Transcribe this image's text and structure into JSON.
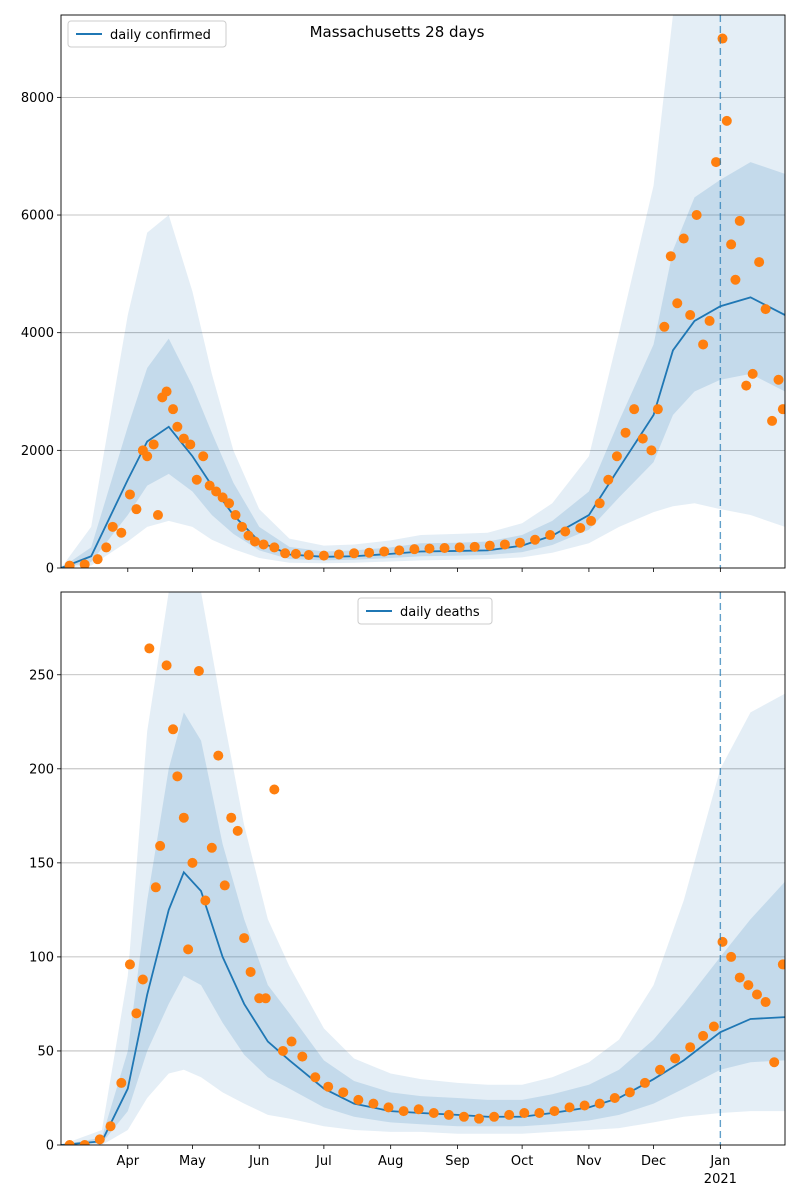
{
  "figure": {
    "title": "Massachusetts 28 days"
  },
  "chart_data": [
    {
      "id": "cases",
      "type": "line",
      "legend_label": "daily confirmed",
      "legend_position": "upper-left",
      "x_range": [
        "2020-03-01",
        "2021-01-31"
      ],
      "ylim": [
        0,
        9400
      ],
      "yticks": [
        0,
        2000,
        4000,
        6000,
        8000
      ],
      "grid": "horizontal",
      "vline_date": "2021-01-01",
      "colors": {
        "line": "#1f77b4",
        "points": "#ff7f0e",
        "band": "#1f77b4",
        "vline": "#1f77b4"
      },
      "series": [
        {
          "role": "model-mean",
          "x": [
            "2020-03-01",
            "2020-03-15",
            "2020-04-01",
            "2020-04-10",
            "2020-04-20",
            "2020-05-01",
            "2020-05-10",
            "2020-05-20",
            "2020-06-01",
            "2020-06-15",
            "2020-07-01",
            "2020-07-15",
            "2020-08-01",
            "2020-08-15",
            "2020-09-01",
            "2020-09-15",
            "2020-10-01",
            "2020-10-15",
            "2020-11-01",
            "2020-11-15",
            "2020-12-01",
            "2020-12-10",
            "2020-12-20",
            "2021-01-01",
            "2021-01-15",
            "2021-01-31"
          ],
          "y": [
            0,
            200,
            1500,
            2150,
            2400,
            1900,
            1400,
            900,
            450,
            230,
            190,
            200,
            240,
            280,
            290,
            300,
            380,
            550,
            900,
            1700,
            2600,
            3700,
            4200,
            4450,
            4600,
            4300
          ]
        },
        {
          "role": "band-inner",
          "x": [
            "2020-03-01",
            "2020-03-15",
            "2020-04-01",
            "2020-04-10",
            "2020-04-20",
            "2020-05-01",
            "2020-05-10",
            "2020-05-20",
            "2020-06-01",
            "2020-06-15",
            "2020-07-01",
            "2020-07-15",
            "2020-08-01",
            "2020-08-15",
            "2020-09-01",
            "2020-09-15",
            "2020-10-01",
            "2020-10-15",
            "2020-11-01",
            "2020-11-15",
            "2020-12-01",
            "2020-12-10",
            "2020-12-20",
            "2021-01-01",
            "2021-01-15",
            "2021-01-31"
          ],
          "lower": [
            0,
            100,
            900,
            1400,
            1600,
            1300,
            900,
            580,
            300,
            150,
            130,
            140,
            170,
            200,
            210,
            220,
            270,
            390,
            650,
            1200,
            1800,
            2600,
            3000,
            3200,
            3300,
            3000
          ],
          "upper": [
            0,
            350,
            2400,
            3400,
            3900,
            3100,
            2300,
            1450,
            700,
            360,
            280,
            300,
            350,
            420,
            430,
            450,
            560,
            800,
            1300,
            2500,
            3800,
            5400,
            6300,
            6600,
            6900,
            6700
          ]
        },
        {
          "role": "band-outer",
          "x": [
            "2020-03-01",
            "2020-03-15",
            "2020-04-01",
            "2020-04-10",
            "2020-04-20",
            "2020-05-01",
            "2020-05-10",
            "2020-05-20",
            "2020-06-01",
            "2020-06-15",
            "2020-07-01",
            "2020-07-15",
            "2020-08-01",
            "2020-08-15",
            "2020-09-01",
            "2020-09-15",
            "2020-10-01",
            "2020-10-15",
            "2020-11-01",
            "2020-11-15",
            "2020-12-01",
            "2020-12-10",
            "2020-12-20",
            "2021-01-01",
            "2021-01-15",
            "2021-01-31"
          ],
          "lower": [
            0,
            40,
            450,
            700,
            800,
            700,
            480,
            320,
            170,
            90,
            80,
            90,
            110,
            130,
            140,
            150,
            180,
            260,
            420,
            700,
            950,
            1050,
            1100,
            1000,
            900,
            700
          ],
          "upper": [
            0,
            700,
            4300,
            5700,
            6000,
            4700,
            3300,
            2000,
            1000,
            500,
            380,
            400,
            470,
            560,
            580,
            600,
            760,
            1100,
            1900,
            4000,
            6500,
            9400,
            9400,
            9400,
            9400,
            9400
          ]
        },
        {
          "role": "observed",
          "x": [
            "2020-03-05",
            "2020-03-12",
            "2020-03-18",
            "2020-03-22",
            "2020-03-25",
            "2020-03-29",
            "2020-04-02",
            "2020-04-05",
            "2020-04-08",
            "2020-04-10",
            "2020-04-13",
            "2020-04-15",
            "2020-04-17",
            "2020-04-19",
            "2020-04-22",
            "2020-04-24",
            "2020-04-27",
            "2020-04-30",
            "2020-05-03",
            "2020-05-06",
            "2020-05-09",
            "2020-05-12",
            "2020-05-15",
            "2020-05-18",
            "2020-05-21",
            "2020-05-24",
            "2020-05-27",
            "2020-05-30",
            "2020-06-03",
            "2020-06-08",
            "2020-06-13",
            "2020-06-18",
            "2020-06-24",
            "2020-07-01",
            "2020-07-08",
            "2020-07-15",
            "2020-07-22",
            "2020-07-29",
            "2020-08-05",
            "2020-08-12",
            "2020-08-19",
            "2020-08-26",
            "2020-09-02",
            "2020-09-09",
            "2020-09-16",
            "2020-09-23",
            "2020-09-30",
            "2020-10-07",
            "2020-10-14",
            "2020-10-21",
            "2020-10-28",
            "2020-11-02",
            "2020-11-06",
            "2020-11-10",
            "2020-11-14",
            "2020-11-18",
            "2020-11-22",
            "2020-11-26",
            "2020-11-30",
            "2020-12-03",
            "2020-12-06",
            "2020-12-09",
            "2020-12-12",
            "2020-12-15",
            "2020-12-18",
            "2020-12-21",
            "2020-12-24",
            "2020-12-27",
            "2020-12-30",
            "2021-01-02",
            "2021-01-04",
            "2021-01-06",
            "2021-01-08",
            "2021-01-10",
            "2021-01-13",
            "2021-01-16",
            "2021-01-19",
            "2021-01-22",
            "2021-01-25",
            "2021-01-28",
            "2021-01-30"
          ],
          "y": [
            40,
            60,
            150,
            350,
            700,
            600,
            1250,
            1000,
            2000,
            1900,
            2100,
            900,
            2900,
            3000,
            2700,
            2400,
            2200,
            2100,
            1500,
            1900,
            1400,
            1300,
            1200,
            1100,
            900,
            700,
            550,
            450,
            400,
            350,
            250,
            240,
            220,
            210,
            230,
            250,
            260,
            280,
            300,
            320,
            330,
            340,
            350,
            360,
            380,
            400,
            430,
            480,
            560,
            620,
            680,
            800,
            1100,
            1500,
            1900,
            2300,
            2700,
            2200,
            2000,
            2700,
            4100,
            5300,
            4500,
            5600,
            4300,
            6000,
            3800,
            4200,
            6900,
            9000,
            7600,
            5500,
            4900,
            5900,
            3100,
            3300,
            5200,
            4400,
            2500,
            3200,
            2700
          ]
        }
      ]
    },
    {
      "id": "deaths",
      "type": "line",
      "legend_label": "daily deaths",
      "legend_position": "upper-center",
      "x_range": [
        "2020-03-01",
        "2021-01-31"
      ],
      "ylim": [
        0,
        294
      ],
      "yticks": [
        0,
        50,
        100,
        150,
        200,
        250
      ],
      "xticks": [
        "2020-04-01",
        "2020-05-01",
        "2020-06-01",
        "2020-07-01",
        "2020-08-01",
        "2020-09-01",
        "2020-10-01",
        "2020-11-01",
        "2020-12-01",
        "2021-01-01"
      ],
      "xtick_labels": [
        "Apr",
        "May",
        "Jun",
        "Jul",
        "Aug",
        "Sep",
        "Oct",
        "Nov",
        "Dec",
        "Jan"
      ],
      "year_label": "2021",
      "grid": "horizontal",
      "vline_date": "2021-01-01",
      "colors": {
        "line": "#1f77b4",
        "points": "#ff7f0e",
        "band": "#1f77b4",
        "vline": "#1f77b4"
      },
      "series": [
        {
          "role": "model-mean",
          "x": [
            "2020-03-01",
            "2020-03-20",
            "2020-04-01",
            "2020-04-10",
            "2020-04-20",
            "2020-04-27",
            "2020-05-05",
            "2020-05-15",
            "2020-05-25",
            "2020-06-05",
            "2020-06-15",
            "2020-07-01",
            "2020-07-15",
            "2020-08-01",
            "2020-08-15",
            "2020-09-01",
            "2020-09-15",
            "2020-10-01",
            "2020-10-15",
            "2020-11-01",
            "2020-11-15",
            "2020-12-01",
            "2020-12-15",
            "2021-01-01",
            "2021-01-15",
            "2021-01-31"
          ],
          "y": [
            0,
            2,
            30,
            80,
            125,
            145,
            135,
            100,
            75,
            55,
            45,
            30,
            22,
            18,
            17,
            16,
            15,
            15,
            17,
            20,
            25,
            35,
            45,
            60,
            67,
            68
          ]
        },
        {
          "role": "band-inner",
          "x": [
            "2020-03-01",
            "2020-03-20",
            "2020-04-01",
            "2020-04-10",
            "2020-04-20",
            "2020-04-27",
            "2020-05-05",
            "2020-05-15",
            "2020-05-25",
            "2020-06-05",
            "2020-06-15",
            "2020-07-01",
            "2020-07-15",
            "2020-08-01",
            "2020-08-15",
            "2020-09-01",
            "2020-09-15",
            "2020-10-01",
            "2020-10-15",
            "2020-11-01",
            "2020-11-15",
            "2020-12-01",
            "2020-12-15",
            "2021-01-01",
            "2021-01-15",
            "2021-01-31"
          ],
          "lower": [
            0,
            1,
            18,
            50,
            75,
            90,
            85,
            65,
            48,
            36,
            30,
            20,
            15,
            12,
            11,
            10,
            10,
            10,
            11,
            13,
            16,
            22,
            30,
            40,
            44,
            45
          ],
          "upper": [
            0,
            4,
            50,
            130,
            200,
            230,
            215,
            160,
            120,
            85,
            70,
            45,
            34,
            28,
            26,
            25,
            24,
            24,
            27,
            32,
            40,
            56,
            75,
            100,
            120,
            140
          ]
        },
        {
          "role": "band-outer",
          "x": [
            "2020-03-01",
            "2020-03-20",
            "2020-04-01",
            "2020-04-10",
            "2020-04-20",
            "2020-04-27",
            "2020-05-05",
            "2020-05-15",
            "2020-05-25",
            "2020-06-05",
            "2020-06-15",
            "2020-07-01",
            "2020-07-15",
            "2020-08-01",
            "2020-08-15",
            "2020-09-01",
            "2020-09-15",
            "2020-10-01",
            "2020-10-15",
            "2020-11-01",
            "2020-11-15",
            "2020-12-01",
            "2020-12-15",
            "2021-01-01",
            "2021-01-15",
            "2021-01-31"
          ],
          "lower": [
            0,
            0,
            8,
            25,
            38,
            40,
            36,
            28,
            22,
            16,
            14,
            10,
            8,
            7,
            7,
            6,
            6,
            6,
            7,
            8,
            9,
            12,
            15,
            17,
            18,
            18
          ],
          "upper": [
            0,
            8,
            90,
            220,
            294,
            294,
            294,
            230,
            170,
            120,
            95,
            62,
            46,
            38,
            35,
            33,
            32,
            32,
            36,
            44,
            56,
            85,
            130,
            200,
            230,
            240
          ]
        },
        {
          "role": "observed",
          "x": [
            "2020-03-05",
            "2020-03-12",
            "2020-03-19",
            "2020-03-24",
            "2020-03-29",
            "2020-04-02",
            "2020-04-05",
            "2020-04-08",
            "2020-04-11",
            "2020-04-14",
            "2020-04-16",
            "2020-04-19",
            "2020-04-22",
            "2020-04-24",
            "2020-04-27",
            "2020-04-29",
            "2020-05-01",
            "2020-05-04",
            "2020-05-07",
            "2020-05-10",
            "2020-05-13",
            "2020-05-16",
            "2020-05-19",
            "2020-05-22",
            "2020-05-25",
            "2020-05-28",
            "2020-06-01",
            "2020-06-04",
            "2020-06-08",
            "2020-06-12",
            "2020-06-16",
            "2020-06-21",
            "2020-06-27",
            "2020-07-03",
            "2020-07-10",
            "2020-07-17",
            "2020-07-24",
            "2020-07-31",
            "2020-08-07",
            "2020-08-14",
            "2020-08-21",
            "2020-08-28",
            "2020-09-04",
            "2020-09-11",
            "2020-09-18",
            "2020-09-25",
            "2020-10-02",
            "2020-10-09",
            "2020-10-16",
            "2020-10-23",
            "2020-10-30",
            "2020-11-06",
            "2020-11-13",
            "2020-11-20",
            "2020-11-27",
            "2020-12-04",
            "2020-12-11",
            "2020-12-18",
            "2020-12-24",
            "2020-12-29",
            "2021-01-02",
            "2021-01-06",
            "2021-01-10",
            "2021-01-14",
            "2021-01-18",
            "2021-01-22",
            "2021-01-26",
            "2021-01-30"
          ],
          "y": [
            0,
            0,
            3,
            10,
            33,
            96,
            70,
            88,
            264,
            137,
            159,
            255,
            221,
            196,
            174,
            104,
            150,
            252,
            130,
            158,
            207,
            138,
            174,
            167,
            110,
            92,
            78,
            78,
            189,
            50,
            55,
            47,
            36,
            31,
            28,
            24,
            22,
            20,
            18,
            19,
            17,
            16,
            15,
            14,
            15,
            16,
            17,
            17,
            18,
            20,
            21,
            22,
            25,
            28,
            33,
            40,
            46,
            52,
            58,
            63,
            108,
            100,
            89,
            85,
            80,
            76,
            44,
            96
          ]
        }
      ]
    }
  ]
}
